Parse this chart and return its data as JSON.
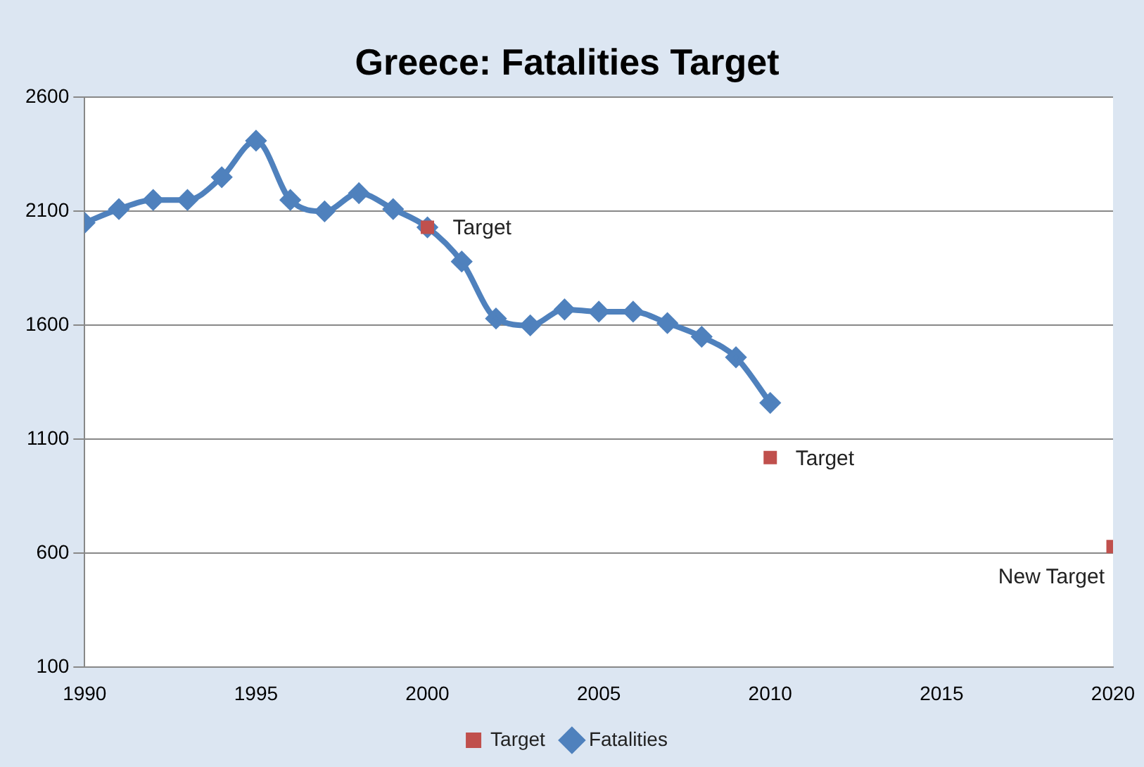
{
  "chart_data": {
    "type": "line",
    "title": "Greece: Fatalities Target",
    "xlim": [
      1990,
      2020
    ],
    "xticks": [
      1990,
      1995,
      2000,
      2005,
      2010,
      2015,
      2020
    ],
    "ylim": [
      100,
      2600
    ],
    "yticks": [
      100,
      600,
      1100,
      1600,
      2100,
      2600
    ],
    "grid": "y",
    "legend": "bottom",
    "line_style": "solid",
    "series": [
      {
        "name": "Fatalities",
        "marker": "diamond",
        "color": "#4f81bd",
        "x": [
          1990,
          1991,
          1992,
          1993,
          1994,
          1995,
          1996,
          1997,
          1998,
          1999,
          2000,
          2001,
          2002,
          2003,
          2004,
          2005,
          2006,
          2007,
          2008,
          2009,
          2010
        ],
        "values": [
          2050,
          2110,
          2150,
          2150,
          2250,
          2410,
          2150,
          2100,
          2180,
          2110,
          2030,
          1880,
          1630,
          1600,
          1670,
          1660,
          1660,
          1610,
          1550,
          1460,
          1260
        ]
      },
      {
        "name": "Target",
        "type": "scatter",
        "marker": "square",
        "color": "#c0504d",
        "x": [
          2000,
          2010,
          2020
        ],
        "values": [
          2030,
          1020,
          630
        ]
      }
    ],
    "annotations": [
      {
        "text": "Target",
        "x": 2000,
        "y": 2030
      },
      {
        "text": "Target",
        "x": 2010,
        "y": 1020
      },
      {
        "text": "New Target",
        "x": 2020,
        "y": 630
      }
    ]
  }
}
